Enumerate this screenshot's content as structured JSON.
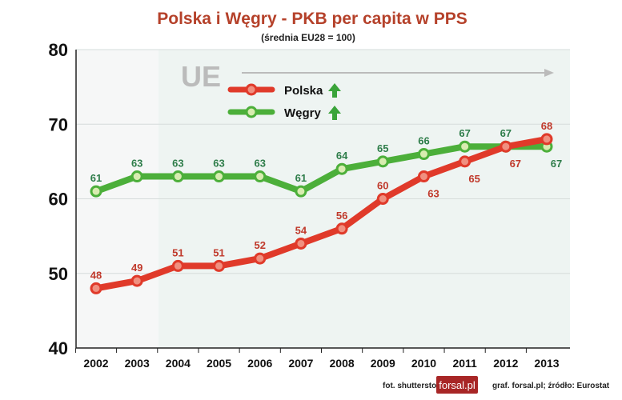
{
  "chart_data": {
    "type": "line",
    "title": "Polska i Węgry - PKB per capita w PPS",
    "subtitle": "(średnia EU28 = 100)",
    "watermark": "UE",
    "categories": [
      "2002",
      "2003",
      "2004",
      "2005",
      "2006",
      "2007",
      "2008",
      "2009",
      "2010",
      "2011",
      "2012",
      "2013"
    ],
    "ylim": [
      40,
      80
    ],
    "yticks": [
      "40",
      "50",
      "60",
      "70",
      "80"
    ],
    "grid": true,
    "legend_placement": "top-left",
    "series": [
      {
        "name": "Polska",
        "color": "#e03a2a",
        "label_color": "#c0392b",
        "values": [
          48,
          49,
          51,
          51,
          52,
          54,
          56,
          60,
          63,
          65,
          67,
          68
        ]
      },
      {
        "name": "Węgry",
        "color": "#4caf3a",
        "label_color": "#2e7d4a",
        "values": [
          61,
          63,
          63,
          63,
          63,
          61,
          64,
          65,
          66,
          67,
          67,
          67
        ]
      }
    ]
  },
  "footer": {
    "photo": "fot. shutterstock",
    "logo": "forsal.pl",
    "source": "graf. forsal.pl;  źródło: Eurostat"
  }
}
